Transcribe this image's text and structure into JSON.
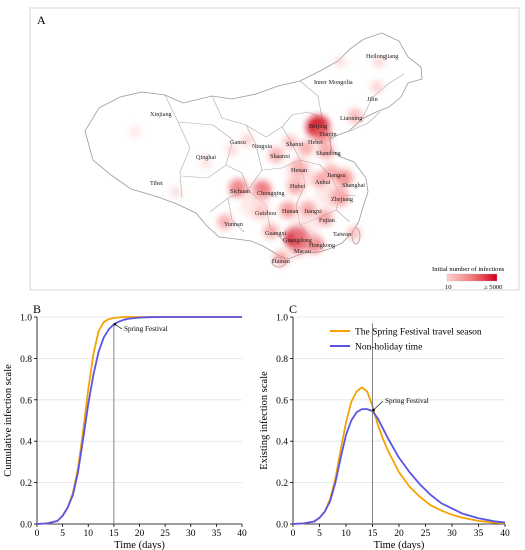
{
  "panel_a": {
    "letter": "A",
    "legend": {
      "title": "Initial number of infections",
      "min_label": "10",
      "max_label": "≥ 5000"
    },
    "colors": {
      "low": "#ffd2d2",
      "mid": "#f07070",
      "high": "#d0001c"
    },
    "regions": [
      {
        "name": "Heilongjiang",
        "level": 0.15
      },
      {
        "name": "Inner Mongolia",
        "level": 0.1
      },
      {
        "name": "Jilin",
        "level": 0.2
      },
      {
        "name": "Xinjiang",
        "level": 0.05
      },
      {
        "name": "Liaoning",
        "level": 0.35
      },
      {
        "name": "Beijing",
        "level": 0.95
      },
      {
        "name": "Tianjin",
        "level": 0.5
      },
      {
        "name": "Gansu",
        "level": 0.15
      },
      {
        "name": "Ningxia",
        "level": 0.2
      },
      {
        "name": "Shanxi",
        "level": 0.3
      },
      {
        "name": "Hebei",
        "level": 0.4
      },
      {
        "name": "Shandong",
        "level": 0.45
      },
      {
        "name": "Qinghai",
        "level": 0.1
      },
      {
        "name": "Shaanxi",
        "level": 0.4
      },
      {
        "name": "Henan",
        "level": 0.55
      },
      {
        "name": "Tibet",
        "level": 0.1
      },
      {
        "name": "Jiangsu",
        "level": 0.4
      },
      {
        "name": "Anhui",
        "level": 0.45
      },
      {
        "name": "Hubei",
        "level": 0.5
      },
      {
        "name": "Shanghai",
        "level": 0.55
      },
      {
        "name": "Sichuan",
        "level": 0.6
      },
      {
        "name": "Chongqing",
        "level": 0.65
      },
      {
        "name": "Zhejiang",
        "level": 0.6
      },
      {
        "name": "Guizhou",
        "level": 0.35
      },
      {
        "name": "Hunan",
        "level": 0.5
      },
      {
        "name": "Jiangxi",
        "level": 0.45
      },
      {
        "name": "Fujian",
        "level": 0.45
      },
      {
        "name": "Yunnan",
        "level": 0.4
      },
      {
        "name": "Taiwan",
        "level": 0.3
      },
      {
        "name": "Guangxi",
        "level": 0.4
      },
      {
        "name": "Guangdong",
        "level": 1.0
      },
      {
        "name": "Hongkong",
        "level": 0.6
      },
      {
        "name": "Macao",
        "level": 0.3
      },
      {
        "name": "Hainan",
        "level": 0.4
      }
    ]
  },
  "panel_b": {
    "letter": "B",
    "annotation": "Spring Festival"
  },
  "panel_c": {
    "letter": "C",
    "annotation": "Spring Festival"
  },
  "chart_data": [
    {
      "type": "line",
      "panel": "B",
      "xlabel": "Time (days)",
      "ylabel": "Cumulative infection scale",
      "xlim": [
        0,
        40
      ],
      "ylim": [
        0,
        1.0
      ],
      "xticks": [
        0,
        5,
        10,
        15,
        20,
        25,
        30,
        35,
        40
      ],
      "yticks": [
        0.0,
        0.2,
        0.4,
        0.6,
        0.8,
        1.0
      ],
      "grid": true,
      "vertical_marker_x": 15,
      "series": [
        {
          "color": "#f5a300",
          "x": [
            0,
            2,
            4,
            5,
            6,
            7,
            8,
            9,
            10,
            11,
            12,
            13,
            14,
            15,
            16,
            17,
            18,
            20,
            25,
            30,
            35,
            40
          ],
          "y": [
            0.0,
            0.003,
            0.015,
            0.04,
            0.08,
            0.15,
            0.27,
            0.45,
            0.65,
            0.82,
            0.93,
            0.975,
            0.99,
            0.995,
            0.998,
            1.0,
            1.0,
            1.0,
            1.0,
            1.0,
            1.0,
            1.0
          ]
        },
        {
          "color": "#5b55e6",
          "x": [
            0,
            2,
            4,
            5,
            6,
            7,
            8,
            9,
            10,
            11,
            12,
            13,
            14,
            15,
            16,
            17,
            18,
            20,
            22,
            25,
            30,
            35,
            40
          ],
          "y": [
            0.0,
            0.003,
            0.015,
            0.04,
            0.08,
            0.14,
            0.25,
            0.41,
            0.58,
            0.72,
            0.83,
            0.9,
            0.94,
            0.965,
            0.978,
            0.987,
            0.992,
            0.997,
            0.999,
            1.0,
            1.0,
            1.0,
            1.0
          ]
        }
      ]
    },
    {
      "type": "line",
      "panel": "C",
      "xlabel": "Time (days)",
      "ylabel": "Existing infection scale",
      "xlim": [
        0,
        40
      ],
      "ylim": [
        0,
        1.0
      ],
      "xticks": [
        0,
        5,
        10,
        15,
        20,
        25,
        30,
        35,
        40
      ],
      "yticks": [
        0.0,
        0.2,
        0.4,
        0.6,
        0.8,
        1.0
      ],
      "grid": true,
      "vertical_marker_x": 15,
      "legend_position": "top-right",
      "series": [
        {
          "name": "The Spring Festival travel season",
          "color": "#f5a300",
          "x": [
            0,
            2,
            4,
            5,
            6,
            7,
            8,
            9,
            10,
            11,
            12,
            13,
            14,
            15,
            16,
            17,
            18,
            20,
            22,
            24,
            26,
            28,
            30,
            32,
            35,
            38,
            40
          ],
          "y": [
            0.0,
            0.003,
            0.012,
            0.03,
            0.06,
            0.12,
            0.22,
            0.36,
            0.49,
            0.59,
            0.64,
            0.66,
            0.64,
            0.57,
            0.48,
            0.41,
            0.35,
            0.25,
            0.18,
            0.13,
            0.09,
            0.065,
            0.045,
            0.03,
            0.015,
            0.007,
            0.004
          ]
        },
        {
          "name": "Non-holiday time",
          "color": "#5b55e6",
          "x": [
            0,
            2,
            4,
            5,
            6,
            7,
            8,
            9,
            10,
            11,
            12,
            13,
            14,
            15,
            16,
            17,
            18,
            20,
            22,
            24,
            26,
            28,
            30,
            32,
            35,
            38,
            40
          ],
          "y": [
            0.0,
            0.003,
            0.012,
            0.03,
            0.06,
            0.11,
            0.2,
            0.32,
            0.43,
            0.5,
            0.54,
            0.555,
            0.555,
            0.545,
            0.51,
            0.46,
            0.41,
            0.32,
            0.25,
            0.19,
            0.14,
            0.1,
            0.075,
            0.05,
            0.028,
            0.013,
            0.007
          ]
        }
      ]
    }
  ]
}
